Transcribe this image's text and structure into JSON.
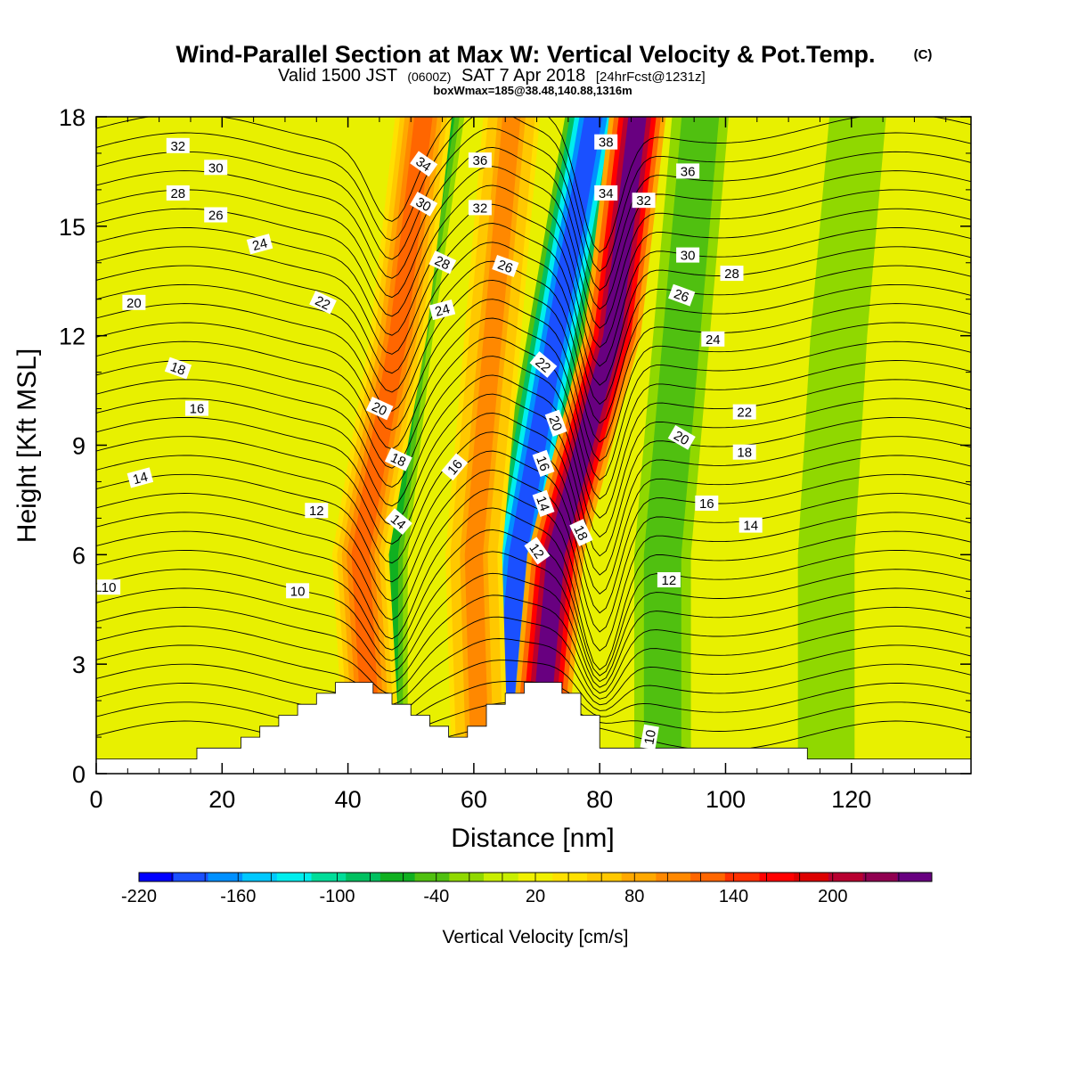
{
  "header": {
    "title_main": "Wind-Parallel Section at Max W: Vertical Velocity & Pot.Temp.",
    "title_mark": "(C)",
    "valid_a": "Valid 1500 JST",
    "valid_b": "(0600Z)",
    "valid_c": "SAT 7 Apr 2018",
    "valid_d": "[24hrFcst@1231z]",
    "box_info": "boxWmax=185@38.48,140.88,1316m"
  },
  "chart_data": {
    "type": "heatmap",
    "xlabel": "Distance [nm]",
    "ylabel": "Height [Kft MSL]",
    "xlim": [
      0,
      139
    ],
    "ylim": [
      0,
      18
    ],
    "x_ticks": [
      0,
      20,
      40,
      60,
      80,
      100,
      120
    ],
    "y_ticks": [
      0,
      3,
      6,
      9,
      12,
      15,
      18
    ],
    "grid": false,
    "colorbar": {
      "label": "Vertical Velocity [cm/s]",
      "min": -220,
      "max": 260,
      "step": 20,
      "tick_labels": [
        "-220",
        "-160",
        "-100",
        "-40",
        "20",
        "80",
        "140",
        "200"
      ],
      "tick_values": [
        -220,
        -160,
        -100,
        -40,
        20,
        80,
        140,
        200
      ],
      "colors": [
        "#0000ff",
        "#1a50ff",
        "#0090ff",
        "#00c8ff",
        "#00eeee",
        "#00dd99",
        "#00c060",
        "#10b020",
        "#50c010",
        "#90d800",
        "#c8ee00",
        "#f0f000",
        "#ffe000",
        "#ffc800",
        "#ffa800",
        "#ff8800",
        "#ff6600",
        "#ff3000",
        "#ff0000",
        "#dd0000",
        "#b80030",
        "#900050",
        "#680080"
      ]
    },
    "terrain_profile": {
      "x": [
        0,
        16,
        16,
        20,
        20,
        23,
        23,
        26,
        26,
        29,
        29,
        32,
        32,
        35,
        35,
        38,
        38,
        44,
        44,
        47,
        47,
        50,
        50,
        53,
        53,
        56,
        56,
        59,
        59,
        62,
        62,
        65,
        65,
        68,
        68,
        74,
        74,
        77,
        77,
        80,
        80,
        113,
        113,
        139
      ],
      "h": [
        0.4,
        0.4,
        0.7,
        0.7,
        0.7,
        0.7,
        1.0,
        1.0,
        1.3,
        1.3,
        1.6,
        1.6,
        1.9,
        1.9,
        2.2,
        2.2,
        2.5,
        2.5,
        2.2,
        2.2,
        1.9,
        1.9,
        1.6,
        1.6,
        1.3,
        1.3,
        1.0,
        1.0,
        1.3,
        1.3,
        1.9,
        1.9,
        2.2,
        2.2,
        2.5,
        2.5,
        2.2,
        2.2,
        1.6,
        1.6,
        0.7,
        0.7,
        0.4,
        0.4
      ]
    },
    "vertical_velocity_bands": [
      {
        "x": [
          45,
          45,
          49,
          54
        ],
        "w": -90
      },
      {
        "x": [
          64,
          67,
          73,
          79
        ],
        "w": -200
      },
      {
        "x": [
          44,
          42,
          48,
          52
        ],
        "w": 110
      },
      {
        "x": [
          70,
          73,
          82,
          86
        ],
        "w": 220
      },
      {
        "x": [
          61,
          60,
          63,
          66
        ],
        "w": 80
      },
      {
        "x": [
          90,
          90,
          93,
          96
        ],
        "w": -60
      },
      {
        "x": [
          116,
          116,
          118,
          121
        ],
        "w": -40
      }
    ],
    "isentrope_labels": [
      {
        "label": "10",
        "x": 2,
        "h": 5.1,
        "angle": 0
      },
      {
        "label": "10",
        "x": 32,
        "h": 5.0,
        "angle": 0
      },
      {
        "label": "10",
        "x": 88,
        "h": 1.0,
        "angle": -80
      },
      {
        "label": "12",
        "x": 35,
        "h": 7.2,
        "angle": 0
      },
      {
        "label": "12",
        "x": 70,
        "h": 6.1,
        "angle": 55
      },
      {
        "label": "12",
        "x": 91,
        "h": 5.3,
        "angle": 0
      },
      {
        "label": "14",
        "x": 7,
        "h": 8.1,
        "angle": -15
      },
      {
        "label": "14",
        "x": 48,
        "h": 6.9,
        "angle": 40
      },
      {
        "label": "14",
        "x": 71,
        "h": 7.4,
        "angle": 70
      },
      {
        "label": "14",
        "x": 104,
        "h": 6.8,
        "angle": 0
      },
      {
        "label": "16",
        "x": 16,
        "h": 10.0,
        "angle": 0
      },
      {
        "label": "16",
        "x": 57,
        "h": 8.4,
        "angle": -50
      },
      {
        "label": "16",
        "x": 71,
        "h": 8.5,
        "angle": 70
      },
      {
        "label": "16",
        "x": 97,
        "h": 7.4,
        "angle": 0
      },
      {
        "label": "18",
        "x": 13,
        "h": 11.1,
        "angle": 20
      },
      {
        "label": "18",
        "x": 48,
        "h": 8.6,
        "angle": 25
      },
      {
        "label": "18",
        "x": 77,
        "h": 6.6,
        "angle": 65
      },
      {
        "label": "18",
        "x": 103,
        "h": 8.8,
        "angle": 0
      },
      {
        "label": "20",
        "x": 6,
        "h": 12.9,
        "angle": 0
      },
      {
        "label": "20",
        "x": 45,
        "h": 10.0,
        "angle": 25
      },
      {
        "label": "20",
        "x": 73,
        "h": 9.6,
        "angle": 70
      },
      {
        "label": "20",
        "x": 93,
        "h": 9.2,
        "angle": 30
      },
      {
        "label": "22",
        "x": 36,
        "h": 12.9,
        "angle": 25
      },
      {
        "label": "22",
        "x": 71,
        "h": 11.2,
        "angle": 40
      },
      {
        "label": "22",
        "x": 103,
        "h": 9.9,
        "angle": 0
      },
      {
        "label": "24",
        "x": 26,
        "h": 14.5,
        "angle": -15
      },
      {
        "label": "24",
        "x": 55,
        "h": 12.7,
        "angle": -15
      },
      {
        "label": "24",
        "x": 98,
        "h": 11.9,
        "angle": 0
      },
      {
        "label": "26",
        "x": 19,
        "h": 15.3,
        "angle": 0
      },
      {
        "label": "26",
        "x": 65,
        "h": 13.9,
        "angle": 20
      },
      {
        "label": "26",
        "x": 93,
        "h": 13.1,
        "angle": 20
      },
      {
        "label": "28",
        "x": 13,
        "h": 15.9,
        "angle": 0
      },
      {
        "label": "28",
        "x": 55,
        "h": 14.0,
        "angle": 25
      },
      {
        "label": "28",
        "x": 101,
        "h": 13.7,
        "angle": 0
      },
      {
        "label": "30",
        "x": 19,
        "h": 16.6,
        "angle": 0
      },
      {
        "label": "30",
        "x": 52,
        "h": 15.6,
        "angle": 30
      },
      {
        "label": "30",
        "x": 94,
        "h": 14.2,
        "angle": 0
      },
      {
        "label": "32",
        "x": 13,
        "h": 17.2,
        "angle": 0
      },
      {
        "label": "32",
        "x": 61,
        "h": 15.5,
        "angle": 0
      },
      {
        "label": "32",
        "x": 87,
        "h": 15.7,
        "angle": 0
      },
      {
        "label": "34",
        "x": 52,
        "h": 16.7,
        "angle": 35
      },
      {
        "label": "34",
        "x": 81,
        "h": 15.9,
        "angle": 0
      },
      {
        "label": "36",
        "x": 61,
        "h": 16.8,
        "angle": 0
      },
      {
        "label": "36",
        "x": 94,
        "h": 16.5,
        "angle": 0
      },
      {
        "label": "38",
        "x": 81,
        "h": 17.3,
        "angle": 0
      }
    ]
  }
}
